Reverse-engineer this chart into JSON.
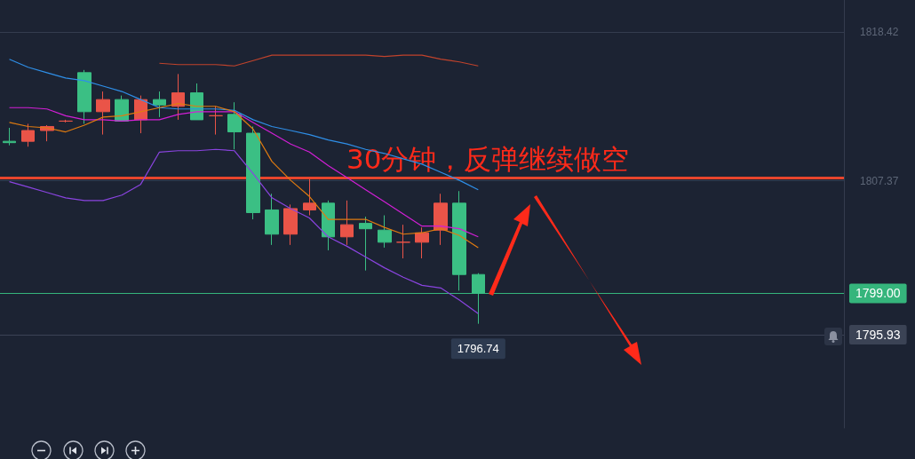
{
  "chart_data": {
    "type": "candlestick",
    "title": "30分钟，反弹继续做空",
    "categories": [
      null,
      null,
      null,
      null,
      null,
      null,
      null,
      null,
      null,
      null,
      null,
      null,
      null,
      null,
      null,
      null,
      null,
      null,
      null,
      null,
      null,
      null,
      null,
      null,
      null,
      null
    ],
    "ohlc": [
      [
        1810.3,
        1811.3,
        1810.0,
        1810.2
      ],
      [
        1810.3,
        1811.6,
        1809.9,
        1811.1
      ],
      [
        1811.1,
        1811.5,
        1810.3,
        1811.4
      ],
      [
        1811.8,
        1811.9,
        1811.7,
        1811.8
      ],
      [
        1815.4,
        1815.6,
        1811.6,
        1812.5
      ],
      [
        1812.5,
        1814.0,
        1810.8,
        1813.4
      ],
      [
        1813.4,
        1813.7,
        1811.8,
        1811.8
      ],
      [
        1811.9,
        1813.7,
        1810.9,
        1813.4
      ],
      [
        1813.4,
        1814.0,
        1812.1,
        1813.0
      ],
      [
        1812.9,
        1815.3,
        1811.9,
        1813.9
      ],
      [
        1813.9,
        1814.6,
        1811.9,
        1811.9
      ],
      [
        1812.2,
        1812.9,
        1810.8,
        1812.2
      ],
      [
        1812.3,
        1813.2,
        1809.7,
        1811.0
      ],
      [
        1810.9,
        1811.4,
        1804.5,
        1805.0
      ],
      [
        1805.2,
        1806.4,
        1802.6,
        1803.4
      ],
      [
        1803.4,
        1805.6,
        1802.6,
        1805.3
      ],
      [
        1805.2,
        1807.5,
        1804.8,
        1805.7
      ],
      [
        1805.7,
        1805.9,
        1802.2,
        1803.2
      ],
      [
        1803.2,
        1805.9,
        1802.6,
        1804.1
      ],
      [
        1804.2,
        1804.7,
        1800.7,
        1803.8
      ],
      [
        1803.7,
        1804.8,
        1802.4,
        1802.8
      ],
      [
        1802.8,
        1804.1,
        1801.6,
        1802.8
      ],
      [
        1802.8,
        1803.9,
        1801.6,
        1803.5
      ],
      [
        1803.7,
        1806.4,
        1802.6,
        1805.7
      ],
      [
        1805.7,
        1806.6,
        1799.2,
        1800.4
      ],
      [
        1800.4,
        1800.5,
        1796.74,
        1799.0
      ]
    ],
    "colors": [
      "#3bbf84",
      "#ea5448",
      "#ea5448",
      "#ea5448",
      "#3bbf84",
      "#ea5448",
      "#3bbf84",
      "#ea5448",
      "#3bbf84",
      "#ea5448",
      "#3bbf84",
      "#ea5448",
      "#3bbf84",
      "#3bbf84",
      "#3bbf84",
      "#ea5448",
      "#ea5448",
      "#3bbf84",
      "#ea5448",
      "#3bbf84",
      "#3bbf84",
      "#ea5448",
      "#ea5448",
      "#ea5448",
      "#3bbf84",
      "#3bbf84"
    ],
    "series": [
      {
        "type": "line",
        "color": "#c0432c",
        "values": [
          null,
          null,
          null,
          null,
          null,
          null,
          null,
          null,
          1816.1,
          1816.0,
          1816.0,
          1816.0,
          1815.9,
          1816.3,
          1816.7,
          1816.7,
          1816.7,
          1816.7,
          1816.7,
          1816.7,
          1816.6,
          1816.7,
          1816.7,
          1816.4,
          1816.2,
          1815.9
        ]
      },
      {
        "type": "line",
        "color": "#2f8fe8",
        "values": [
          1816.4,
          1815.8,
          1815.4,
          1815.0,
          1814.8,
          1814.4,
          1814.0,
          1813.4,
          1812.8,
          1812.7,
          1812.7,
          1812.7,
          1812.6,
          1811.9,
          1811.4,
          1811.1,
          1810.8,
          1810.4,
          1810.1,
          1809.7,
          1809.4,
          1809.0,
          1808.6,
          1808.0,
          1807.4,
          1806.7
        ]
      },
      {
        "type": "line",
        "color": "#d21fd6",
        "values": [
          1812.8,
          1812.8,
          1812.7,
          1812.2,
          1811.9,
          1811.9,
          1811.8,
          1811.9,
          1811.9,
          1812.3,
          1812.5,
          1812.5,
          1812.5,
          1811.7,
          1810.9,
          1810.1,
          1809.5,
          1808.5,
          1807.6,
          1806.7,
          1805.8,
          1804.9,
          1804.0,
          1804.0,
          1803.8,
          1803.2
        ]
      },
      {
        "type": "line",
        "color": "#e07b10",
        "values": [
          1811.7,
          1811.4,
          1811.3,
          1811.0,
          1811.5,
          1812.1,
          1812.2,
          1812.5,
          1812.8,
          1813.1,
          1812.9,
          1812.9,
          1812.5,
          1811.2,
          1808.8,
          1807.4,
          1806.2,
          1804.5,
          1804.5,
          1804.5,
          1803.9,
          1803.4,
          1803.5,
          1803.8,
          1803.3,
          1802.4
        ]
      },
      {
        "type": "line",
        "color": "#8a44e0",
        "values": [
          1807.3,
          1806.9,
          1806.5,
          1806.1,
          1805.9,
          1805.9,
          1806.3,
          1807.1,
          1809.5,
          1809.6,
          1809.6,
          1809.7,
          1809.6,
          1807.9,
          1806.1,
          1805.3,
          1804.6,
          1803.2,
          1802.5,
          1801.7,
          1800.9,
          1800.2,
          1799.6,
          1799.4,
          1798.5,
          1797.5
        ]
      }
    ],
    "marker": "none",
    "ylim": [
      1789.0,
      1820.8
    ],
    "yticks": [
      1807.37,
      1818.42
    ],
    "grid": "y",
    "tick_labels": "y",
    "ref_lines": [
      {
        "axis": "y",
        "value": 1807.6,
        "color": "#e8452c"
      },
      {
        "axis": "y",
        "value": 1799.0,
        "label": "1799.00",
        "color": "#35b57c"
      },
      {
        "axis": "y",
        "value": 1795.93,
        "label": "1795.93",
        "color": "#3b4355"
      }
    ],
    "annotations": [
      {
        "text": "1796.74",
        "y": 1796.74
      }
    ]
  }
}
